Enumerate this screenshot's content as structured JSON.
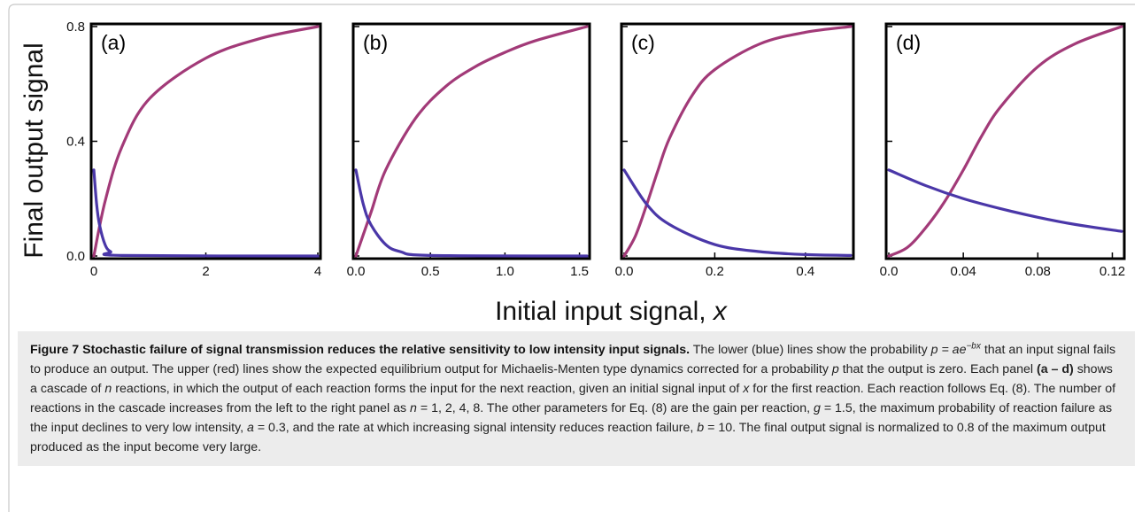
{
  "chart_data": [
    {
      "type": "line",
      "panel": "(a)",
      "n": 1,
      "xlim": [
        0,
        4
      ],
      "ylim": [
        0,
        0.8
      ],
      "x_ticks": [
        "0",
        "2",
        "4"
      ],
      "y_ticks": [
        "0.0",
        "0.4",
        "0.8"
      ],
      "series": [
        {
          "color": "#a23a78",
          "x": [
            0,
            0.2,
            0.5,
            1,
            2,
            3,
            4
          ],
          "values": [
            0,
            0.19,
            0.38,
            0.55,
            0.69,
            0.76,
            0.8
          ]
        },
        {
          "color": "#4a37a8",
          "x": [
            0,
            0.05,
            0.1,
            0.2,
            0.3,
            0.5,
            4
          ],
          "values": [
            0.3,
            0.18,
            0.11,
            0.04,
            0.015,
            0.002,
            0
          ]
        }
      ]
    },
    {
      "type": "line",
      "panel": "(b)",
      "n": 2,
      "xlim": [
        0,
        1.55
      ],
      "ylim": [
        0,
        0.8
      ],
      "x_ticks": [
        "0.0",
        "0.5",
        "1.0",
        "1.5"
      ],
      "series": [
        {
          "color": "#a23a78",
          "x": [
            0,
            0.1,
            0.2,
            0.4,
            0.6,
            0.8,
            1.0,
            1.2,
            1.55
          ],
          "values": [
            0,
            0.15,
            0.3,
            0.48,
            0.59,
            0.66,
            0.71,
            0.75,
            0.8
          ]
        },
        {
          "color": "#4a37a8",
          "x": [
            0,
            0.05,
            0.1,
            0.2,
            0.3,
            0.5,
            1.55
          ],
          "values": [
            0.3,
            0.18,
            0.11,
            0.04,
            0.015,
            0.002,
            0
          ]
        }
      ]
    },
    {
      "type": "line",
      "panel": "(c)",
      "n": 4,
      "xlim": [
        0,
        0.5
      ],
      "ylim": [
        0,
        0.8
      ],
      "x_ticks": [
        "0.0",
        "0.2",
        "0.4"
      ],
      "series": [
        {
          "color": "#a23a78",
          "x": [
            0,
            0.025,
            0.05,
            0.075,
            0.1,
            0.15,
            0.2,
            0.3,
            0.4,
            0.5
          ],
          "values": [
            0,
            0.07,
            0.18,
            0.3,
            0.41,
            0.56,
            0.65,
            0.74,
            0.78,
            0.8
          ]
        },
        {
          "color": "#4a37a8",
          "x": [
            0,
            0.05,
            0.1,
            0.2,
            0.3,
            0.4,
            0.5
          ],
          "values": [
            0.3,
            0.18,
            0.11,
            0.04,
            0.015,
            0.005,
            0.002
          ]
        }
      ]
    },
    {
      "type": "line",
      "panel": "(d)",
      "n": 8,
      "xlim": [
        0,
        0.125
      ],
      "ylim": [
        0,
        0.8
      ],
      "x_ticks": [
        "0.0",
        "0.04",
        "0.08",
        "0.12"
      ],
      "series": [
        {
          "color": "#a23a78",
          "x": [
            0,
            0.01,
            0.02,
            0.03,
            0.04,
            0.05,
            0.06,
            0.08,
            0.1,
            0.125
          ],
          "values": [
            0,
            0.03,
            0.1,
            0.19,
            0.3,
            0.42,
            0.52,
            0.66,
            0.74,
            0.8
          ]
        },
        {
          "color": "#4a37a8",
          "x": [
            0,
            0.02,
            0.04,
            0.06,
            0.08,
            0.1,
            0.125
          ],
          "values": [
            0.3,
            0.245,
            0.2,
            0.165,
            0.135,
            0.11,
            0.086
          ]
        }
      ]
    }
  ],
  "ylabel": "Final output signal",
  "xlabel_main": "Initial input signal, ",
  "xlabel_var": "x",
  "caption": {
    "title": "Figure 7 Stochastic failure of signal transmission reduces the relative sensitivity to low intensity input signals.",
    "s1": " The lower (blue) lines show the probability ",
    "eq_p": "p = ae",
    "eq_exp": "−bx",
    "s2": " that an input signal fails to produce an output. The upper (red) lines show the expected equilibrium output for Michaelis-Menten type dynamics corrected for a probability ",
    "p": "p",
    "s3": " that the output is zero. Each panel ",
    "panels": "(a – d)",
    "s4": " shows a cascade of ",
    "n": "n",
    "s5": " reactions, in which the output of each reaction forms the input for the next reaction, given an initial signal input of ",
    "x": "x",
    "s6": " for the first reaction. Each reaction follows Eq. (8). The number of reactions in the cascade increases from the left to the right panel as ",
    "n2": "n",
    "s7": " = 1, 2, 4, 8. The other parameters for Eq. (8) are the gain per reaction, ",
    "g": "g",
    "s8": " = 1.5, the maximum probability of reaction failure as the input declines to very low intensity, ",
    "a": "a",
    "s9": " = 0.3, and the rate at which increasing signal intensity reduces reaction failure, ",
    "b": "b",
    "s10": " = 10. The final output signal is normalized to 0.8 of the maximum output produced as the input become very large."
  }
}
